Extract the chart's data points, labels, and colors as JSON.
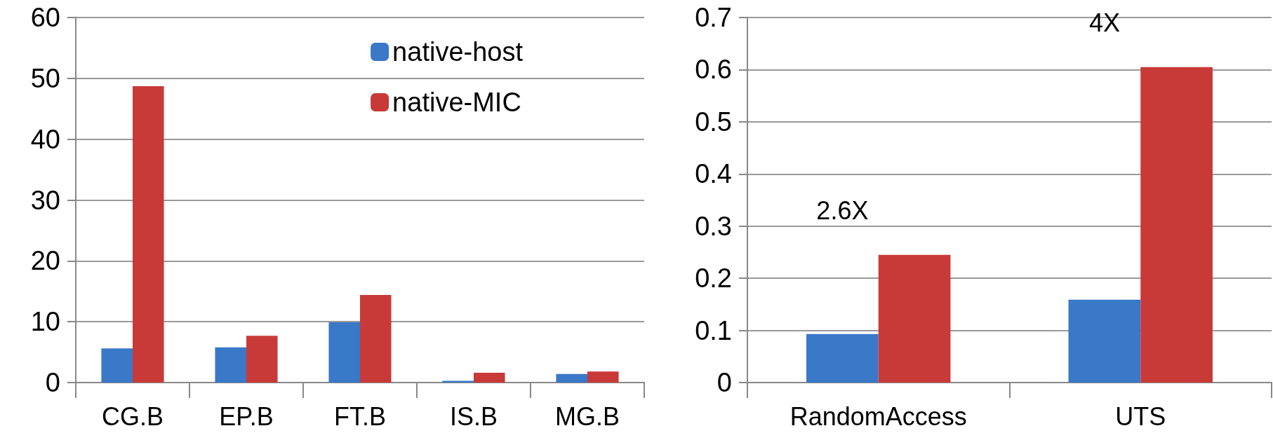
{
  "chart_data": [
    {
      "type": "bar",
      "categories": [
        "CG.B",
        "EP.B",
        "FT.B",
        "IS.B",
        "MG.B"
      ],
      "series": [
        {
          "name": "native-host",
          "color": "#3a78c8",
          "values": [
            5.6,
            5.8,
            9.9,
            0.3,
            1.4
          ]
        },
        {
          "name": "native-MIC",
          "color": "#c83a38",
          "values": [
            48.7,
            7.7,
            14.4,
            1.6,
            1.8
          ]
        }
      ],
      "ylim": [
        0,
        60
      ],
      "yticks": [
        0,
        10,
        20,
        30,
        40,
        50,
        60
      ],
      "grid": "y",
      "legend": "top right"
    },
    {
      "type": "bar",
      "categories": [
        "RandomAccess",
        "UTS"
      ],
      "series": [
        {
          "color": "#3a78c8",
          "values": [
            0.093,
            0.159
          ]
        },
        {
          "color": "#c83a38",
          "values": [
            0.245,
            0.605
          ]
        }
      ],
      "ylim": [
        0,
        0.7
      ],
      "yticks": [
        0,
        0.1,
        0.2,
        0.3,
        0.4,
        0.5,
        0.6,
        0.7
      ],
      "grid": "y",
      "annotations": [
        {
          "text": "2.6X",
          "x": "RandomAccess",
          "y": 0.245
        },
        {
          "text": "4X",
          "x": "UTS",
          "y": 0.605
        }
      ]
    }
  ]
}
